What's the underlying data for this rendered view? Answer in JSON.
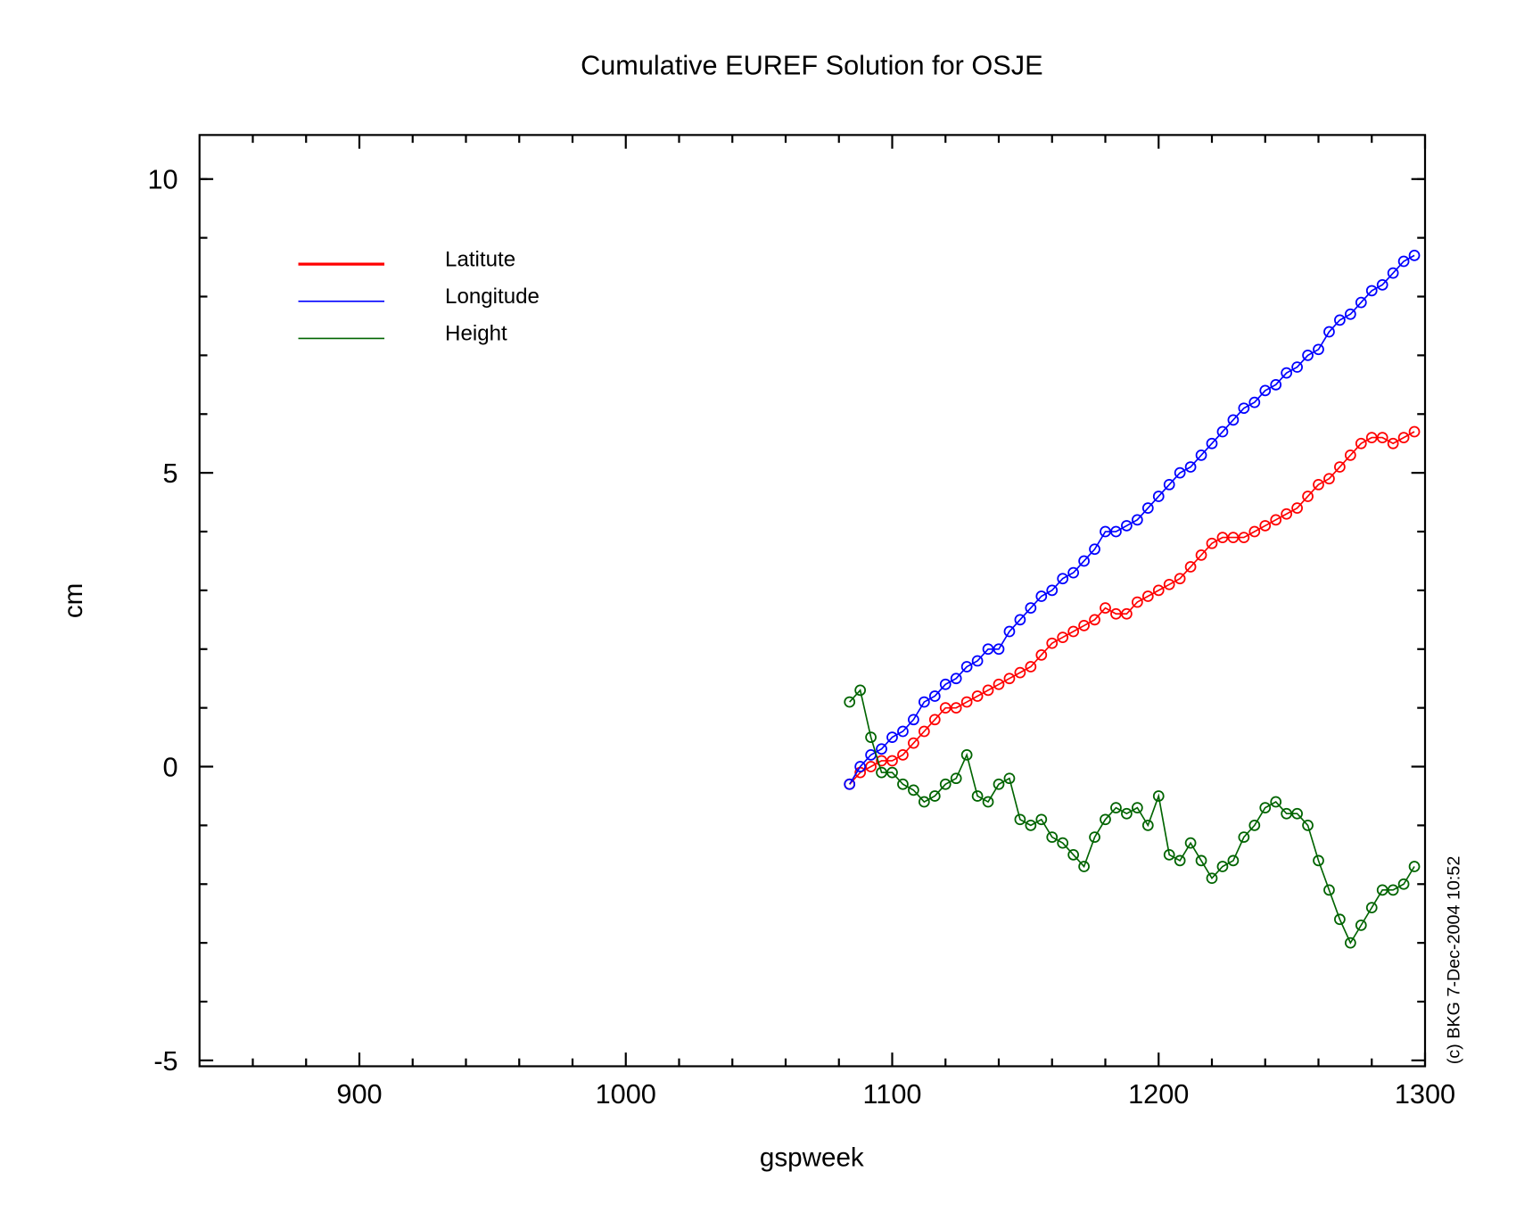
{
  "chart_data": {
    "type": "line",
    "title": "Cumulative EUREF Solution for OSJE",
    "x_label": "gspweek",
    "y_label": "cm",
    "annotation": "(c) BKG 7-Dec-2004 10:52",
    "xlim": [
      840,
      1300
    ],
    "ylim": [
      -5.1,
      10.75
    ],
    "xticks": [
      900,
      1000,
      1100,
      1200,
      1300
    ],
    "xticks_minor": [
      860,
      880,
      920,
      940,
      960,
      980,
      1020,
      1040,
      1060,
      1080,
      1120,
      1140,
      1160,
      1180,
      1220,
      1240,
      1260,
      1280
    ],
    "yticks": [
      -5,
      0,
      5,
      10
    ],
    "yticks_minor": [
      -4,
      -3,
      -2,
      -1,
      1,
      2,
      3,
      4,
      6,
      7,
      8,
      9,
      10
    ],
    "legend": "upper left",
    "x": [
      1084,
      1088,
      1092,
      1096,
      1100,
      1104,
      1108,
      1112,
      1116,
      1120,
      1124,
      1128,
      1132,
      1136,
      1140,
      1144,
      1148,
      1152,
      1156,
      1160,
      1164,
      1168,
      1172,
      1176,
      1180,
      1184,
      1188,
      1192,
      1196,
      1200,
      1204,
      1208,
      1212,
      1216,
      1220,
      1224,
      1228,
      1232,
      1236,
      1240,
      1244,
      1248,
      1252,
      1256,
      1260,
      1264,
      1268,
      1272,
      1276,
      1280,
      1284,
      1288,
      1292,
      1296
    ],
    "series": [
      {
        "name": "Latitute",
        "color": "#ff0000",
        "values": [
          -0.3,
          -0.1,
          0.0,
          0.1,
          0.1,
          0.2,
          0.4,
          0.6,
          0.8,
          1.0,
          1.0,
          1.1,
          1.2,
          1.3,
          1.4,
          1.5,
          1.6,
          1.7,
          1.9,
          2.1,
          2.2,
          2.3,
          2.4,
          2.5,
          2.7,
          2.6,
          2.6,
          2.8,
          2.9,
          3.0,
          3.1,
          3.2,
          3.4,
          3.6,
          3.8,
          3.9,
          3.9,
          3.9,
          4.0,
          4.1,
          4.2,
          4.3,
          4.4,
          4.6,
          4.8,
          4.9,
          5.1,
          5.3,
          5.5,
          5.6,
          5.6,
          5.5,
          5.6,
          5.7
        ]
      },
      {
        "name": "Longitude",
        "color": "#0000ff",
        "values": [
          -0.3,
          0.0,
          0.2,
          0.3,
          0.5,
          0.6,
          0.8,
          1.1,
          1.2,
          1.4,
          1.5,
          1.7,
          1.8,
          2.0,
          2.0,
          2.3,
          2.5,
          2.7,
          2.9,
          3.0,
          3.2,
          3.3,
          3.5,
          3.7,
          4.0,
          4.0,
          4.1,
          4.2,
          4.4,
          4.6,
          4.8,
          5.0,
          5.1,
          5.3,
          5.5,
          5.7,
          5.9,
          6.1,
          6.2,
          6.4,
          6.5,
          6.7,
          6.8,
          7.0,
          7.1,
          7.4,
          7.6,
          7.7,
          7.9,
          8.1,
          8.2,
          8.4,
          8.6,
          8.7
        ]
      },
      {
        "name": "Height",
        "color": "#006400",
        "values": [
          1.1,
          1.3,
          0.5,
          -0.1,
          -0.1,
          -0.3,
          -0.4,
          -0.6,
          -0.5,
          -0.3,
          -0.2,
          0.2,
          -0.5,
          -0.6,
          -0.3,
          -0.2,
          -0.9,
          -1.0,
          -0.9,
          -1.2,
          -1.3,
          -1.5,
          -1.7,
          -1.2,
          -0.9,
          -0.7,
          -0.8,
          -0.7,
          -1.0,
          -0.5,
          -1.5,
          -1.6,
          -1.3,
          -1.6,
          -1.9,
          -1.7,
          -1.6,
          -1.2,
          -1.0,
          -0.7,
          -0.6,
          -0.8,
          -0.8,
          -1.0,
          -1.6,
          -2.1,
          -2.6,
          -3.0,
          -2.7,
          -2.4,
          -2.1,
          -2.1,
          -2.0,
          -1.7
        ]
      }
    ]
  }
}
